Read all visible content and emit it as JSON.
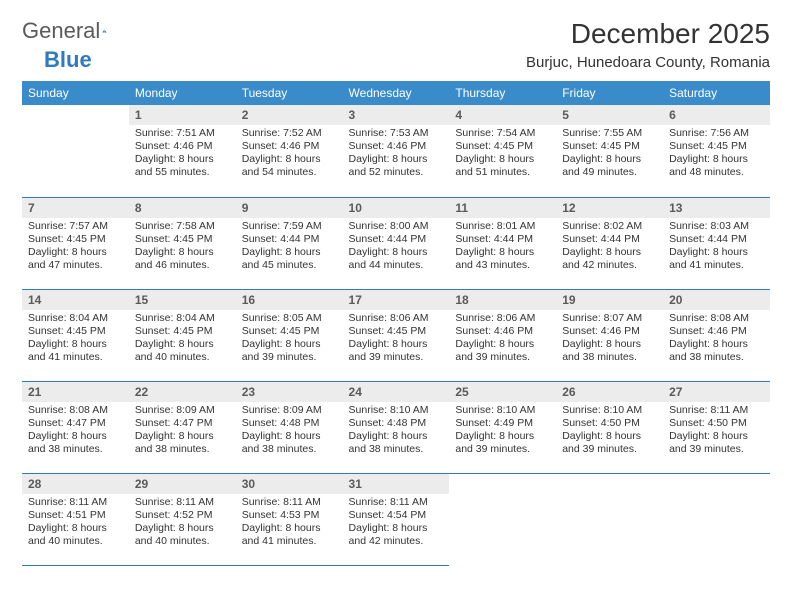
{
  "brand": {
    "general": "General",
    "blue": "Blue"
  },
  "title": "December 2025",
  "location": "Burjuc, Hunedoara County, Romania",
  "colors": {
    "header_bg": "#3a8bc9",
    "accent": "#2f7ac0",
    "daynum_bg": "#ececec"
  },
  "dayNames": [
    "Sunday",
    "Monday",
    "Tuesday",
    "Wednesday",
    "Thursday",
    "Friday",
    "Saturday"
  ],
  "weeks": [
    [
      null,
      {
        "n": "1",
        "sr": "7:51 AM",
        "ss": "4:46 PM",
        "dl": "8 hours and 55 minutes."
      },
      {
        "n": "2",
        "sr": "7:52 AM",
        "ss": "4:46 PM",
        "dl": "8 hours and 54 minutes."
      },
      {
        "n": "3",
        "sr": "7:53 AM",
        "ss": "4:46 PM",
        "dl": "8 hours and 52 minutes."
      },
      {
        "n": "4",
        "sr": "7:54 AM",
        "ss": "4:45 PM",
        "dl": "8 hours and 51 minutes."
      },
      {
        "n": "5",
        "sr": "7:55 AM",
        "ss": "4:45 PM",
        "dl": "8 hours and 49 minutes."
      },
      {
        "n": "6",
        "sr": "7:56 AM",
        "ss": "4:45 PM",
        "dl": "8 hours and 48 minutes."
      }
    ],
    [
      {
        "n": "7",
        "sr": "7:57 AM",
        "ss": "4:45 PM",
        "dl": "8 hours and 47 minutes."
      },
      {
        "n": "8",
        "sr": "7:58 AM",
        "ss": "4:45 PM",
        "dl": "8 hours and 46 minutes."
      },
      {
        "n": "9",
        "sr": "7:59 AM",
        "ss": "4:44 PM",
        "dl": "8 hours and 45 minutes."
      },
      {
        "n": "10",
        "sr": "8:00 AM",
        "ss": "4:44 PM",
        "dl": "8 hours and 44 minutes."
      },
      {
        "n": "11",
        "sr": "8:01 AM",
        "ss": "4:44 PM",
        "dl": "8 hours and 43 minutes."
      },
      {
        "n": "12",
        "sr": "8:02 AM",
        "ss": "4:44 PM",
        "dl": "8 hours and 42 minutes."
      },
      {
        "n": "13",
        "sr": "8:03 AM",
        "ss": "4:44 PM",
        "dl": "8 hours and 41 minutes."
      }
    ],
    [
      {
        "n": "14",
        "sr": "8:04 AM",
        "ss": "4:45 PM",
        "dl": "8 hours and 41 minutes."
      },
      {
        "n": "15",
        "sr": "8:04 AM",
        "ss": "4:45 PM",
        "dl": "8 hours and 40 minutes."
      },
      {
        "n": "16",
        "sr": "8:05 AM",
        "ss": "4:45 PM",
        "dl": "8 hours and 39 minutes."
      },
      {
        "n": "17",
        "sr": "8:06 AM",
        "ss": "4:45 PM",
        "dl": "8 hours and 39 minutes."
      },
      {
        "n": "18",
        "sr": "8:06 AM",
        "ss": "4:46 PM",
        "dl": "8 hours and 39 minutes."
      },
      {
        "n": "19",
        "sr": "8:07 AM",
        "ss": "4:46 PM",
        "dl": "8 hours and 38 minutes."
      },
      {
        "n": "20",
        "sr": "8:08 AM",
        "ss": "4:46 PM",
        "dl": "8 hours and 38 minutes."
      }
    ],
    [
      {
        "n": "21",
        "sr": "8:08 AM",
        "ss": "4:47 PM",
        "dl": "8 hours and 38 minutes."
      },
      {
        "n": "22",
        "sr": "8:09 AM",
        "ss": "4:47 PM",
        "dl": "8 hours and 38 minutes."
      },
      {
        "n": "23",
        "sr": "8:09 AM",
        "ss": "4:48 PM",
        "dl": "8 hours and 38 minutes."
      },
      {
        "n": "24",
        "sr": "8:10 AM",
        "ss": "4:48 PM",
        "dl": "8 hours and 38 minutes."
      },
      {
        "n": "25",
        "sr": "8:10 AM",
        "ss": "4:49 PM",
        "dl": "8 hours and 39 minutes."
      },
      {
        "n": "26",
        "sr": "8:10 AM",
        "ss": "4:50 PM",
        "dl": "8 hours and 39 minutes."
      },
      {
        "n": "27",
        "sr": "8:11 AM",
        "ss": "4:50 PM",
        "dl": "8 hours and 39 minutes."
      }
    ],
    [
      {
        "n": "28",
        "sr": "8:11 AM",
        "ss": "4:51 PM",
        "dl": "8 hours and 40 minutes."
      },
      {
        "n": "29",
        "sr": "8:11 AM",
        "ss": "4:52 PM",
        "dl": "8 hours and 40 minutes."
      },
      {
        "n": "30",
        "sr": "8:11 AM",
        "ss": "4:53 PM",
        "dl": "8 hours and 41 minutes."
      },
      {
        "n": "31",
        "sr": "8:11 AM",
        "ss": "4:54 PM",
        "dl": "8 hours and 42 minutes."
      },
      null,
      null,
      null
    ]
  ],
  "labels": {
    "sunrise": "Sunrise:",
    "sunset": "Sunset:",
    "daylight": "Daylight:"
  }
}
